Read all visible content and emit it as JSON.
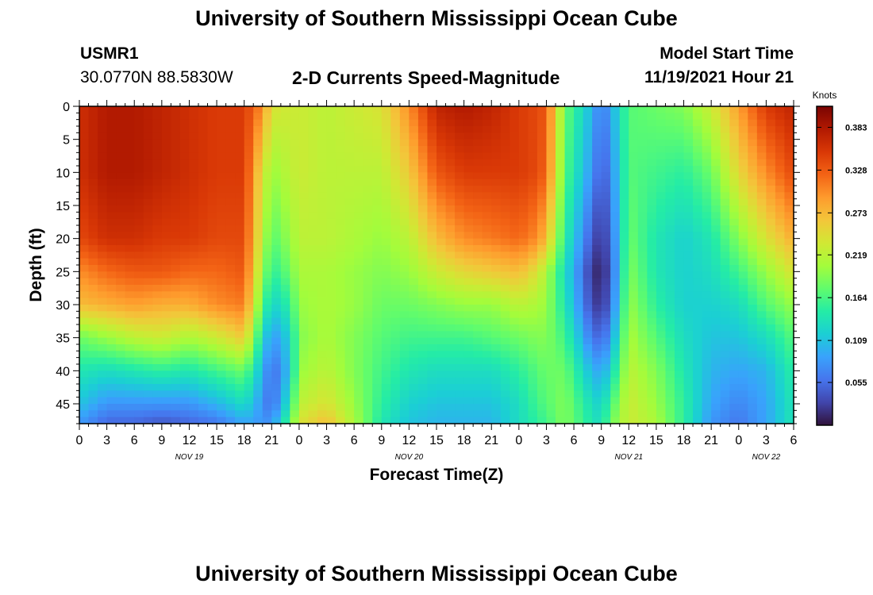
{
  "header": {
    "title": "University of Southern Mississippi Ocean Cube",
    "station": "USMR1",
    "coords": "30.0770N  88.5830W",
    "subtitle": "2-D Currents Speed-Magnitude",
    "model_label": "Model Start Time",
    "model_time": "11/19/2021 Hour 21",
    "footer_title": "University of Southern Mississippi Ocean Cube"
  },
  "colors": {
    "ramp": [
      "#30123b",
      "#4145ab",
      "#4675ed",
      "#39a2fc",
      "#1bcfd4",
      "#24eca6",
      "#61fc6c",
      "#a4fc3b",
      "#d1e834",
      "#f3c63a",
      "#fe9b2d",
      "#f36315",
      "#d93806",
      "#b11901",
      "#7a0403"
    ]
  },
  "chart_data": {
    "type": "heatmap",
    "title": "2-D Currents Speed-Magnitude",
    "xlabel": "Forecast Time(Z)",
    "ylabel": "Depth (ft)",
    "colorbar_label": "Knots",
    "colorbar_ticks": [
      "0.383",
      "0.328",
      "0.273",
      "0.219",
      "0.164",
      "0.109",
      "0.055"
    ],
    "colorbar_range": [
      0.0,
      0.41
    ],
    "xlim": [
      0,
      78
    ],
    "ylim": [
      0,
      48
    ],
    "x_tick_labels": [
      "0",
      "3",
      "6",
      "9",
      "12",
      "15",
      "18",
      "21",
      "0",
      "3",
      "6",
      "9",
      "12",
      "15",
      "18",
      "21",
      "0",
      "3",
      "6",
      "9",
      "12",
      "15",
      "18",
      "21",
      "0",
      "3",
      "6"
    ],
    "y_tick_labels": [
      "0",
      "5",
      "10",
      "15",
      "20",
      "25",
      "30",
      "35",
      "40",
      "45"
    ],
    "day_labels": [
      "NOV 19",
      "NOV 20",
      "NOV 21",
      "NOV 22"
    ],
    "day_label_hours": [
      12,
      36,
      60,
      75
    ],
    "data_hours": [
      0,
      3,
      6,
      9,
      12,
      15,
      18,
      20,
      21,
      23,
      24,
      27,
      30,
      33,
      36,
      39,
      42,
      45,
      48,
      50,
      51,
      53,
      56,
      57,
      58,
      60,
      63,
      66,
      69,
      72,
      75,
      78
    ],
    "data_depths": [
      0,
      10,
      20,
      25,
      30,
      35,
      40,
      45,
      48
    ],
    "speed_knots_by_hour": [
      [
        0.36,
        0.36,
        0.34,
        0.3,
        0.27,
        0.18,
        0.14,
        0.11,
        0.08
      ],
      [
        0.38,
        0.38,
        0.36,
        0.32,
        0.28,
        0.2,
        0.13,
        0.08,
        0.05
      ],
      [
        0.38,
        0.38,
        0.36,
        0.33,
        0.29,
        0.22,
        0.14,
        0.08,
        0.05
      ],
      [
        0.37,
        0.37,
        0.35,
        0.33,
        0.28,
        0.23,
        0.15,
        0.08,
        0.04
      ],
      [
        0.36,
        0.36,
        0.35,
        0.32,
        0.28,
        0.21,
        0.14,
        0.08,
        0.05
      ],
      [
        0.35,
        0.35,
        0.34,
        0.32,
        0.3,
        0.23,
        0.16,
        0.1,
        0.06
      ],
      [
        0.35,
        0.35,
        0.34,
        0.33,
        0.31,
        0.26,
        0.18,
        0.13,
        0.09
      ],
      [
        0.3,
        0.24,
        0.22,
        0.2,
        0.17,
        0.13,
        0.1,
        0.08,
        0.08
      ],
      [
        0.24,
        0.2,
        0.17,
        0.15,
        0.12,
        0.08,
        0.05,
        0.05,
        0.08
      ],
      [
        0.23,
        0.22,
        0.2,
        0.18,
        0.15,
        0.12,
        0.11,
        0.14,
        0.17
      ],
      [
        0.23,
        0.23,
        0.22,
        0.21,
        0.2,
        0.19,
        0.2,
        0.22,
        0.24
      ],
      [
        0.22,
        0.22,
        0.22,
        0.21,
        0.21,
        0.21,
        0.22,
        0.24,
        0.27
      ],
      [
        0.23,
        0.22,
        0.21,
        0.2,
        0.2,
        0.19,
        0.19,
        0.2,
        0.21
      ],
      [
        0.24,
        0.22,
        0.2,
        0.19,
        0.18,
        0.17,
        0.16,
        0.15,
        0.14
      ],
      [
        0.3,
        0.26,
        0.22,
        0.2,
        0.18,
        0.16,
        0.14,
        0.12,
        0.11
      ],
      [
        0.37,
        0.33,
        0.27,
        0.23,
        0.19,
        0.16,
        0.13,
        0.11,
        0.1
      ],
      [
        0.38,
        0.35,
        0.3,
        0.25,
        0.2,
        0.16,
        0.13,
        0.11,
        0.1
      ],
      [
        0.37,
        0.35,
        0.31,
        0.26,
        0.2,
        0.17,
        0.13,
        0.11,
        0.1
      ],
      [
        0.35,
        0.35,
        0.32,
        0.27,
        0.22,
        0.18,
        0.15,
        0.13,
        0.13
      ],
      [
        0.34,
        0.34,
        0.3,
        0.24,
        0.21,
        0.19,
        0.17,
        0.16,
        0.15
      ],
      [
        0.33,
        0.32,
        0.27,
        0.21,
        0.2,
        0.19,
        0.18,
        0.17,
        0.16
      ],
      [
        0.18,
        0.17,
        0.15,
        0.13,
        0.14,
        0.16,
        0.18,
        0.19,
        0.19
      ],
      [
        0.1,
        0.08,
        0.04,
        0.02,
        0.03,
        0.06,
        0.1,
        0.13,
        0.14
      ],
      [
        0.06,
        0.04,
        0.02,
        0.01,
        0.02,
        0.05,
        0.09,
        0.12,
        0.13
      ],
      [
        0.09,
        0.07,
        0.05,
        0.04,
        0.05,
        0.08,
        0.12,
        0.16,
        0.18
      ],
      [
        0.17,
        0.17,
        0.18,
        0.19,
        0.2,
        0.21,
        0.22,
        0.23,
        0.23
      ],
      [
        0.18,
        0.16,
        0.14,
        0.14,
        0.15,
        0.17,
        0.19,
        0.2,
        0.21
      ],
      [
        0.19,
        0.15,
        0.12,
        0.12,
        0.12,
        0.13,
        0.14,
        0.15,
        0.15
      ],
      [
        0.23,
        0.18,
        0.14,
        0.13,
        0.12,
        0.11,
        0.1,
        0.09,
        0.08
      ],
      [
        0.29,
        0.25,
        0.19,
        0.16,
        0.13,
        0.11,
        0.09,
        0.07,
        0.06
      ],
      [
        0.35,
        0.3,
        0.24,
        0.2,
        0.17,
        0.13,
        0.1,
        0.09,
        0.09
      ],
      [
        0.37,
        0.34,
        0.28,
        0.24,
        0.2,
        0.17,
        0.15,
        0.14,
        0.14
      ]
    ]
  }
}
